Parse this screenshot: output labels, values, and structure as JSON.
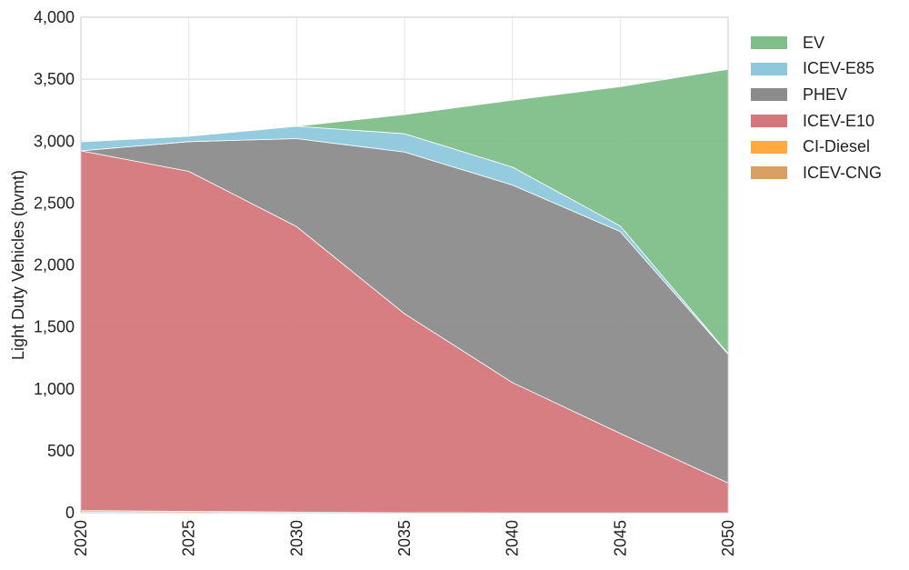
{
  "chart_data": {
    "type": "area",
    "stacked": true,
    "x": [
      2020,
      2025,
      2030,
      2035,
      2040,
      2045,
      2050
    ],
    "xlabel": "",
    "ylabel": "Light Duty Vehicles (bvmt)",
    "ylim": [
      0,
      4000
    ],
    "yticks": [
      0,
      500,
      1000,
      1500,
      2000,
      2500,
      3000,
      3500,
      4000
    ],
    "ytick_labels": [
      "0",
      "500",
      "1,000",
      "1,500",
      "2,000",
      "2,500",
      "3,000",
      "3,500",
      "4,000"
    ],
    "xtick_labels": [
      "2020",
      "2025",
      "2030",
      "2035",
      "2040",
      "2045",
      "2050"
    ],
    "grid": true,
    "legend_position": "top-right outside",
    "series": [
      {
        "name": "ICEV-CNG",
        "color": "#d9a066",
        "values": [
          5,
          3,
          1,
          0,
          0,
          0,
          0
        ]
      },
      {
        "name": "CI-Diesel",
        "color": "#ffa940",
        "values": [
          12,
          8,
          4,
          2,
          1,
          0,
          0
        ]
      },
      {
        "name": "ICEV-E10",
        "color": "#d4777b",
        "values": [
          2905,
          2745,
          2305,
          1605,
          1050,
          640,
          240
        ]
      },
      {
        "name": "PHEV",
        "color": "#8c8c8c",
        "values": [
          0,
          240,
          710,
          1305,
          1595,
          1630,
          1040
        ]
      },
      {
        "name": "ICEV-E85",
        "color": "#8fc8dc",
        "values": [
          73,
          44,
          100,
          148,
          145,
          45,
          5
        ]
      },
      {
        "name": "EV",
        "color": "#7fbe8a",
        "values": [
          0,
          0,
          0,
          155,
          539,
          1125,
          2295
        ]
      }
    ],
    "legend_order": [
      "EV",
      "ICEV-E85",
      "PHEV",
      "ICEV-E10",
      "CI-Diesel",
      "ICEV-CNG"
    ]
  }
}
